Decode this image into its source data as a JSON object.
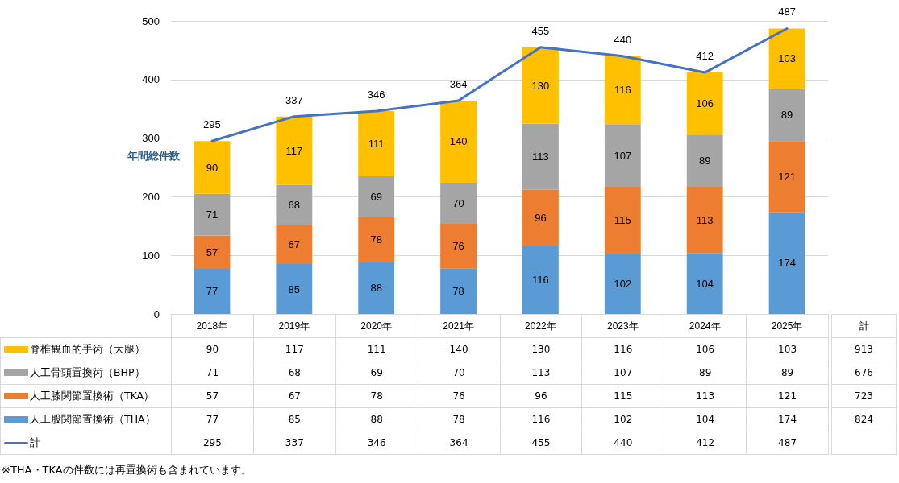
{
  "chart_data": {
    "type": "bar",
    "stacked": true,
    "ylabel": "年間総件数",
    "categories": [
      "2018年",
      "2019年",
      "2020年",
      "2021年",
      "2022年",
      "2023年",
      "2024年",
      "2025年"
    ],
    "series": [
      {
        "name": "人工股関節置換術（THA）",
        "color": "#5b9bd5",
        "values": [
          77,
          85,
          88,
          78,
          116,
          102,
          104,
          174
        ],
        "value_labels": [
          "77",
          "85",
          "88",
          "78",
          "116",
          "102",
          "104",
          "174"
        ]
      },
      {
        "name": "人工膝関節置換術（TKA）",
        "color": "#ed7d31",
        "values": [
          57,
          67,
          78,
          76,
          96,
          115,
          113,
          121
        ],
        "value_labels": [
          "57",
          "67",
          "78",
          "76",
          "96",
          "115",
          "113",
          "121"
        ]
      },
      {
        "name": "人工骨頭置換術（BHP）",
        "color": "#a5a5a5",
        "values": [
          71,
          68,
          69,
          70,
          113,
          107,
          89,
          89
        ],
        "value_labels": [
          "71",
          "68",
          "69",
          "70",
          "113",
          "107",
          "89",
          "89"
        ]
      },
      {
        "name": "脊椎観血的手術（大腿）",
        "color": "#ffc000",
        "values": [
          90,
          117,
          111,
          140,
          130,
          116,
          106,
          103
        ],
        "value_labels": [
          "90",
          "117",
          "111",
          "140",
          "130",
          "116",
          "106",
          "103"
        ]
      },
      {
        "name": "計",
        "type": "line",
        "color": "#4472c4",
        "marker": "none",
        "line_style": "solid",
        "values": [
          295,
          337,
          346,
          364,
          455,
          440,
          412,
          487
        ],
        "value_labels": [
          "295",
          "337",
          "346",
          "364",
          "455",
          "440",
          "412",
          "487"
        ]
      }
    ],
    "ylim": [
      0,
      500
    ],
    "yticks": [
      0,
      100,
      200,
      300,
      400,
      500
    ],
    "grid": "y",
    "legend": "bottom",
    "data_labels": true,
    "annotations": [
      "計",
      "913",
      "676",
      "723",
      "824",
      "※THA・TKAの件数には再置換術も含まれています。"
    ]
  }
}
